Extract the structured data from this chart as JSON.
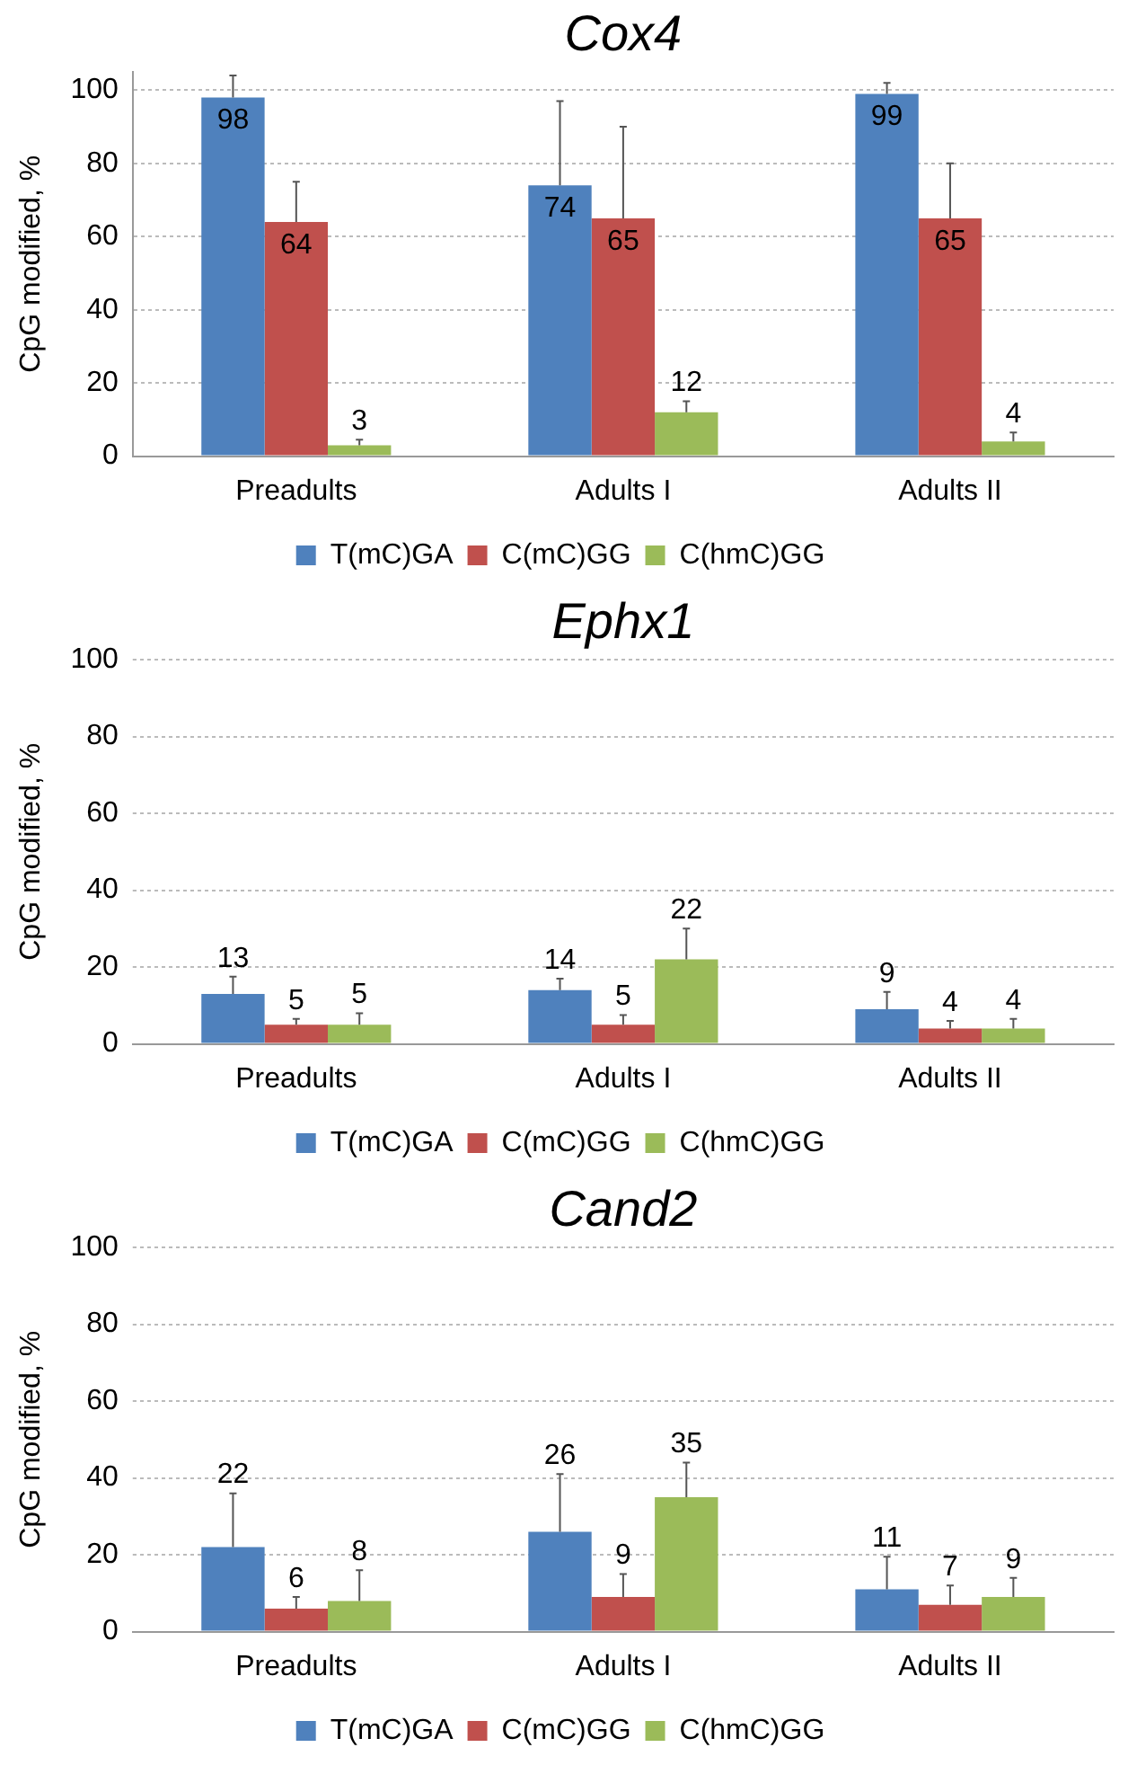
{
  "chart_data": [
    {
      "type": "bar",
      "title": "Cox4",
      "ylabel": "CpG modified, %",
      "categories": [
        "Preadults",
        "Adults I",
        "Adults II"
      ],
      "ylim": [
        0,
        105
      ],
      "yticks": [
        0,
        20,
        40,
        60,
        80,
        100
      ],
      "grid": "y",
      "legend": "bottom",
      "data_labels": true,
      "series": [
        {
          "name": "T(mC)GA",
          "color": "#4f81bd",
          "values": [
            98,
            74,
            99
          ],
          "errors": [
            [
              98,
              104
            ],
            [
              74,
              97
            ],
            [
              99,
              102
            ]
          ]
        },
        {
          "name": "C(mC)GG",
          "color": "#c0504d",
          "values": [
            64,
            65,
            65
          ],
          "errors": [
            [
              64,
              75
            ],
            [
              65,
              90
            ],
            [
              65,
              80
            ]
          ]
        },
        {
          "name": "C(hmC)GG",
          "color": "#9bbb59",
          "values": [
            3,
            12,
            4
          ],
          "errors": [
            [
              3,
              4.5
            ],
            [
              12,
              15
            ],
            [
              4,
              6.5
            ]
          ]
        }
      ]
    },
    {
      "type": "bar",
      "title": "Ephx1",
      "ylabel": "CpG modified, %",
      "categories": [
        "Preadults",
        "Adults I",
        "Adults II"
      ],
      "ylim": [
        0,
        100
      ],
      "yticks": [
        0,
        20,
        40,
        60,
        80,
        100
      ],
      "grid": "y",
      "legend": "bottom",
      "data_labels": true,
      "series": [
        {
          "name": "T(mC)GA",
          "color": "#4f81bd",
          "values": [
            13,
            14,
            9
          ],
          "errors": [
            [
              13,
              17.5
            ],
            [
              14,
              17
            ],
            [
              9,
              13.5
            ]
          ]
        },
        {
          "name": "C(mC)GG",
          "color": "#c0504d",
          "values": [
            5,
            5,
            4
          ],
          "errors": [
            [
              5,
              6.5
            ],
            [
              5,
              7.5
            ],
            [
              4,
              6
            ]
          ]
        },
        {
          "name": "C(hmC)GG",
          "color": "#9bbb59",
          "values": [
            5,
            22,
            4
          ],
          "errors": [
            [
              5,
              8
            ],
            [
              22,
              30
            ],
            [
              4,
              6.5
            ]
          ]
        }
      ]
    },
    {
      "type": "bar",
      "title": "Cand2",
      "ylabel": "CpG modified, %",
      "categories": [
        "Preadults",
        "Adults I",
        "Adults II"
      ],
      "ylim": [
        0,
        100
      ],
      "yticks": [
        0,
        20,
        40,
        60,
        80,
        100
      ],
      "grid": "y",
      "legend": "bottom",
      "data_labels": true,
      "series": [
        {
          "name": "T(mC)GA",
          "color": "#4f81bd",
          "values": [
            22,
            26,
            11
          ],
          "errors": [
            [
              22,
              36
            ],
            [
              26,
              41
            ],
            [
              11,
              19.5
            ]
          ]
        },
        {
          "name": "C(mC)GG",
          "color": "#c0504d",
          "values": [
            6,
            9,
            7
          ],
          "errors": [
            [
              6,
              9
            ],
            [
              9,
              15
            ],
            [
              7,
              12
            ]
          ]
        },
        {
          "name": "C(hmC)GG",
          "color": "#9bbb59",
          "values": [
            8,
            35,
            9
          ],
          "errors": [
            [
              8,
              16
            ],
            [
              35,
              44
            ],
            [
              9,
              14
            ]
          ]
        }
      ]
    }
  ]
}
